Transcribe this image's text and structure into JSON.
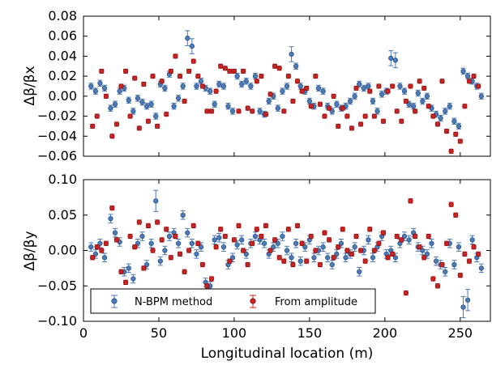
{
  "chart_data": [
    {
      "type": "scatter",
      "ylabel": "Δβ/βx",
      "xlim": [
        0,
        270
      ],
      "ylim": [
        -0.06,
        0.08
      ],
      "yticks": [
        "0.08",
        "0.06",
        "0.04",
        "0.02",
        "0.00",
        "−0.02",
        "−0.04",
        "−0.06"
      ],
      "ytick_values": [
        0.08,
        0.06,
        0.04,
        0.02,
        0.0,
        -0.02,
        -0.04,
        -0.06
      ],
      "series": [
        {
          "name": "N-BPM method",
          "color": "#4a7ab8",
          "x": [
            5,
            8,
            11,
            14,
            18,
            21,
            24,
            27,
            30,
            33,
            36,
            39,
            42,
            45,
            48,
            51,
            54,
            57,
            60,
            63,
            66,
            69,
            72,
            75,
            78,
            81,
            84,
            87,
            90,
            93,
            96,
            99,
            102,
            105,
            108,
            111,
            114,
            117,
            120,
            123,
            126,
            129,
            132,
            135,
            138,
            141,
            144,
            147,
            150,
            153,
            156,
            159,
            162,
            165,
            168,
            171,
            174,
            177,
            180,
            183,
            186,
            189,
            192,
            195,
            198,
            201,
            204,
            207,
            210,
            213,
            216,
            219,
            222,
            225,
            228,
            231,
            234,
            237,
            240,
            243,
            246,
            249,
            252,
            255,
            258,
            261,
            264
          ],
          "y": [
            0.01,
            0.005,
            0.013,
            0.008,
            -0.012,
            -0.008,
            0.005,
            0.008,
            -0.004,
            -0.015,
            -0.002,
            -0.006,
            -0.01,
            -0.008,
            -0.02,
            0.012,
            0.008,
            0.022,
            -0.01,
            -0.002,
            0.01,
            0.058,
            0.05,
            0.01,
            0.015,
            0.008,
            0.005,
            -0.008,
            0.012,
            0.01,
            -0.01,
            -0.015,
            0.02,
            0.012,
            0.015,
            0.01,
            0.02,
            -0.015,
            -0.018,
            -0.005,
            0.0,
            -0.012,
            0.005,
            0.01,
            0.042,
            0.03,
            0.01,
            0.005,
            -0.005,
            -0.01,
            0.008,
            0.005,
            -0.01,
            -0.015,
            -0.008,
            -0.012,
            -0.01,
            -0.005,
            0.0,
            0.012,
            0.008,
            0.01,
            -0.005,
            -0.015,
            0.002,
            0.005,
            0.038,
            0.036,
            0.01,
            0.005,
            -0.008,
            -0.01,
            0.003,
            -0.005,
            0.0,
            -0.012,
            -0.018,
            -0.022,
            -0.015,
            -0.01,
            -0.025,
            -0.03,
            0.025,
            0.02,
            0.015,
            0.01,
            0.0
          ]
        },
        {
          "name": "From amplitude",
          "color": "#cc2222",
          "x": [
            6,
            9,
            12,
            15,
            19,
            22,
            25,
            28,
            31,
            34,
            37,
            40,
            43,
            46,
            49,
            52,
            55,
            58,
            61,
            64,
            67,
            70,
            73,
            76,
            79,
            82,
            85,
            88,
            91,
            94,
            97,
            100,
            103,
            106,
            109,
            112,
            115,
            118,
            121,
            124,
            127,
            130,
            133,
            136,
            139,
            142,
            145,
            148,
            151,
            154,
            157,
            160,
            163,
            166,
            169,
            172,
            175,
            178,
            181,
            184,
            187,
            190,
            193,
            196,
            199,
            202,
            205,
            208,
            211,
            214,
            217,
            220,
            223,
            226,
            229,
            232,
            235,
            238,
            241,
            244,
            247,
            250,
            253,
            256,
            259,
            262
          ],
          "y": [
            -0.03,
            -0.02,
            0.025,
            0.0,
            -0.04,
            -0.028,
            0.01,
            0.025,
            -0.02,
            0.018,
            -0.032,
            0.012,
            -0.025,
            0.02,
            -0.03,
            0.015,
            -0.018,
            0.025,
            0.04,
            0.02,
            -0.005,
            0.025,
            0.035,
            0.02,
            0.01,
            -0.015,
            -0.015,
            0.005,
            0.03,
            0.028,
            0.025,
            0.025,
            -0.015,
            0.025,
            -0.012,
            -0.015,
            0.015,
            0.02,
            -0.018,
            0.002,
            0.03,
            0.028,
            -0.015,
            0.02,
            -0.005,
            0.015,
            0.005,
            0.008,
            -0.01,
            0.02,
            -0.008,
            -0.02,
            -0.012,
            0.0,
            -0.03,
            -0.012,
            -0.02,
            -0.032,
            0.008,
            -0.028,
            -0.02,
            0.005,
            -0.02,
            0.01,
            -0.025,
            0.005,
            0.01,
            -0.015,
            -0.025,
            -0.005,
            0.01,
            -0.015,
            0.015,
            0.008,
            -0.01,
            -0.02,
            -0.028,
            0.015,
            -0.035,
            -0.055,
            -0.038,
            -0.045,
            -0.01,
            0.015,
            0.02,
            0.01
          ],
          "err": 0.002
        }
      ]
    },
    {
      "type": "scatter",
      "xlabel": "Longitudinal location (m)",
      "ylabel": "Δβ/βy",
      "xlim": [
        0,
        270
      ],
      "ylim": [
        -0.1,
        0.1
      ],
      "xticks": [
        "0",
        "50",
        "100",
        "150",
        "200",
        "250"
      ],
      "xtick_values": [
        0,
        50,
        100,
        150,
        200,
        250
      ],
      "yticks": [
        "0.10",
        "0.05",
        "0.00",
        "−0.05",
        "−0.10"
      ],
      "ytick_values": [
        0.1,
        0.05,
        0.0,
        -0.05,
        -0.1
      ],
      "legend": {
        "position": "lower-left",
        "entries": [
          "N-BPM method",
          "From amplitude"
        ]
      },
      "series": [
        {
          "name": "N-BPM method",
          "color": "#4a7ab8",
          "x": [
            5,
            8,
            11,
            14,
            18,
            21,
            24,
            27,
            30,
            33,
            36,
            39,
            42,
            45,
            48,
            51,
            54,
            57,
            60,
            63,
            66,
            69,
            72,
            75,
            78,
            81,
            84,
            87,
            90,
            93,
            96,
            99,
            102,
            105,
            108,
            111,
            114,
            117,
            120,
            123,
            126,
            129,
            132,
            135,
            138,
            141,
            144,
            147,
            150,
            153,
            156,
            159,
            162,
            165,
            168,
            171,
            174,
            177,
            180,
            183,
            186,
            189,
            192,
            195,
            198,
            201,
            204,
            207,
            210,
            213,
            216,
            219,
            222,
            225,
            228,
            231,
            234,
            237,
            240,
            243,
            246,
            249,
            252,
            255,
            258,
            261,
            264
          ],
          "y": [
            0.005,
            -0.005,
            0.01,
            -0.01,
            0.045,
            0.025,
            0.012,
            -0.03,
            -0.025,
            -0.04,
            0.01,
            0.02,
            -0.02,
            0.01,
            0.07,
            -0.015,
            0.0,
            0.02,
            0.025,
            0.01,
            0.05,
            0.025,
            0.01,
            -0.005,
            0.005,
            -0.045,
            -0.05,
            0.015,
            0.018,
            0.005,
            -0.02,
            -0.01,
            0.008,
            0.015,
            -0.005,
            0.01,
            0.02,
            0.015,
            0.01,
            -0.005,
            0.005,
            0.01,
            0.02,
            0.0,
            -0.01,
            0.01,
            -0.015,
            0.005,
            0.015,
            -0.01,
            0.0,
            0.005,
            -0.01,
            -0.02,
            -0.005,
            0.01,
            -0.01,
            -0.005,
            0.005,
            -0.03,
            0.0,
            0.015,
            -0.01,
            0.005,
            0.02,
            -0.005,
            0.0,
            -0.01,
            0.01,
            0.02,
            0.015,
            0.025,
            0.005,
            0.0,
            -0.005,
            0.01,
            -0.015,
            -0.02,
            -0.03,
            0.01,
            -0.02,
            0.005,
            -0.08,
            -0.07,
            0.015,
            -0.01,
            -0.025
          ]
        },
        {
          "name": "From amplitude",
          "color": "#cc2222",
          "x": [
            6,
            9,
            12,
            15,
            19,
            22,
            25,
            28,
            31,
            34,
            37,
            40,
            43,
            46,
            49,
            52,
            55,
            58,
            61,
            64,
            67,
            70,
            73,
            76,
            79,
            82,
            85,
            88,
            91,
            94,
            97,
            100,
            103,
            106,
            109,
            112,
            115,
            118,
            121,
            124,
            127,
            130,
            133,
            136,
            139,
            142,
            145,
            148,
            151,
            154,
            157,
            160,
            163,
            166,
            169,
            172,
            175,
            178,
            181,
            184,
            187,
            190,
            193,
            196,
            199,
            202,
            205,
            208,
            211,
            214,
            217,
            220,
            223,
            226,
            229,
            232,
            235,
            238,
            241,
            244,
            247,
            250,
            253,
            256,
            259,
            262
          ],
          "y": [
            -0.01,
            0.005,
            0.0,
            0.01,
            0.06,
            0.015,
            -0.03,
            -0.045,
            0.02,
            0.005,
            0.04,
            -0.025,
            0.035,
            0.0,
            0.04,
            0.015,
            0.03,
            -0.01,
            0.02,
            -0.005,
            -0.03,
            0.0,
            0.035,
            0.01,
            -0.02,
            -0.05,
            -0.04,
            0.005,
            0.03,
            0.02,
            -0.015,
            0.015,
            0.035,
            0.0,
            -0.02,
            0.01,
            0.03,
            0.02,
            0.035,
            0.0,
            0.015,
            -0.01,
            -0.015,
            0.03,
            -0.02,
            0.035,
            0.01,
            -0.015,
            0.02,
            0.0,
            -0.02,
            0.025,
            0.015,
            -0.01,
            0.005,
            0.03,
            0.0,
            -0.005,
            0.02,
            0.0,
            -0.015,
            0.03,
            0.0,
            0.01,
            0.025,
            -0.01,
            -0.005,
            0.02,
            0.015,
            -0.06,
            0.07,
            0.02,
            0.005,
            -0.01,
            0.02,
            -0.04,
            -0.05,
            -0.02,
            0.01,
            0.065,
            0.05,
            -0.035,
            -0.005,
            -0.015,
            0.005,
            -0.005
          ],
          "err": 0.003
        }
      ]
    }
  ]
}
